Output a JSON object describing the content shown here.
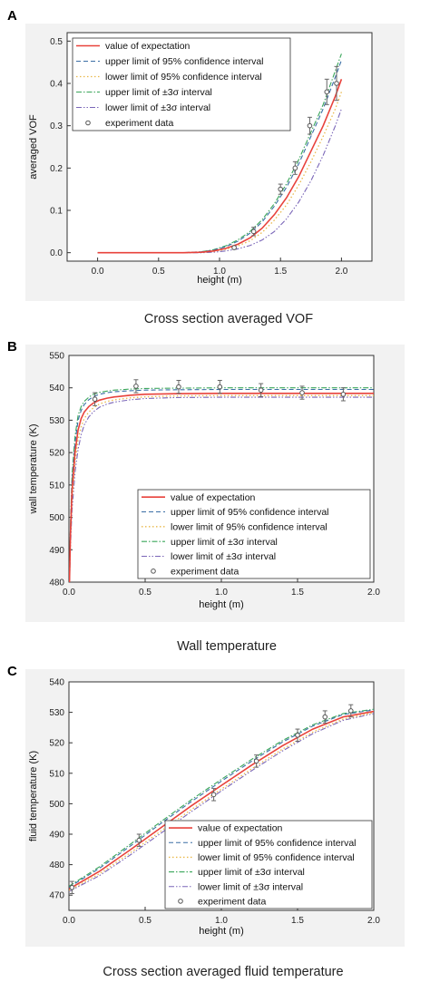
{
  "captions": [
    "Cross section averaged VOF",
    "Wall temperature",
    "Cross section averaged fluid temperature"
  ],
  "legend": {
    "entries": [
      {
        "label": "value of expectation",
        "color": "#e8423b",
        "dash": "",
        "width": 1.6
      },
      {
        "label": "upper limit of 95% confidence interval",
        "color": "#3a6ea5",
        "dash": "5,3",
        "width": 1.1
      },
      {
        "label": "lower limit of 95% confidence interval",
        "color": "#e9b84a",
        "dash": "1.5,2.5",
        "width": 1.3
      },
      {
        "label": "upper limit of ±3σ interval",
        "color": "#3aa65a",
        "dash": "6,2,1.5,2",
        "width": 1.1
      },
      {
        "label": "lower limit of ±3σ interval",
        "color": "#7a66b8",
        "dash": "6,2,1.5,2,1.5,2",
        "width": 1.1
      },
      {
        "label": "experiment data",
        "marker": "circle",
        "color": "#555555"
      }
    ]
  },
  "chart_data": [
    {
      "panel": "A",
      "type": "line",
      "xlabel": "height (m)",
      "ylabel": "averaged VOF",
      "xlim": [
        -0.25,
        2.25
      ],
      "ylim": [
        -0.02,
        0.52
      ],
      "xticks": [
        "0.0",
        "0.5",
        "1.0",
        "1.5",
        "2.0"
      ],
      "yticks": [
        "0.0",
        "0.1",
        "0.2",
        "0.3",
        "0.4",
        "0.5"
      ],
      "grid": false,
      "legend_position": "top-left",
      "series": [
        {
          "name": "value of expectation",
          "x": [
            0,
            0.7,
            0.85,
            0.95,
            1.05,
            1.15,
            1.25,
            1.35,
            1.45,
            1.55,
            1.65,
            1.75,
            1.85,
            1.95,
            2.0
          ],
          "y": [
            0,
            0,
            0.001,
            0.004,
            0.01,
            0.02,
            0.035,
            0.058,
            0.09,
            0.13,
            0.18,
            0.24,
            0.3,
            0.37,
            0.41
          ]
        },
        {
          "name": "upper limit of 95% confidence interval",
          "x": [
            0,
            0.7,
            0.85,
            0.95,
            1.05,
            1.15,
            1.25,
            1.35,
            1.45,
            1.55,
            1.65,
            1.75,
            1.85,
            1.95,
            2.0
          ],
          "y": [
            0,
            0,
            0.002,
            0.006,
            0.014,
            0.027,
            0.046,
            0.073,
            0.11,
            0.155,
            0.21,
            0.275,
            0.34,
            0.415,
            0.455
          ]
        },
        {
          "name": "lower limit of 95% confidence interval",
          "x": [
            0,
            0.7,
            0.85,
            0.95,
            1.05,
            1.15,
            1.25,
            1.35,
            1.45,
            1.55,
            1.65,
            1.75,
            1.85,
            1.95,
            2.0
          ],
          "y": [
            0,
            0,
            0.001,
            0.003,
            0.008,
            0.016,
            0.028,
            0.048,
            0.077,
            0.113,
            0.16,
            0.215,
            0.275,
            0.34,
            0.38
          ]
        },
        {
          "name": "upper limit of ±3σ interval",
          "x": [
            0,
            0.7,
            0.85,
            0.95,
            1.05,
            1.15,
            1.25,
            1.35,
            1.45,
            1.55,
            1.65,
            1.75,
            1.85,
            1.95,
            2.0
          ],
          "y": [
            0,
            0,
            0.002,
            0.007,
            0.016,
            0.03,
            0.05,
            0.078,
            0.116,
            0.163,
            0.22,
            0.285,
            0.35,
            0.43,
            0.47
          ]
        },
        {
          "name": "lower limit of ±3σ interval",
          "x": [
            0,
            0.7,
            0.85,
            0.95,
            1.05,
            1.15,
            1.25,
            1.35,
            1.45,
            1.55,
            1.65,
            1.75,
            1.85,
            1.95,
            2.0
          ],
          "y": [
            0,
            0,
            0,
            0.001,
            0.004,
            0.009,
            0.017,
            0.03,
            0.05,
            0.08,
            0.12,
            0.17,
            0.23,
            0.3,
            0.34
          ]
        }
      ],
      "experiment": {
        "x": [
          1.12,
          1.28,
          1.5,
          1.62,
          1.74,
          1.88,
          1.96
        ],
        "y": [
          0.012,
          0.05,
          0.15,
          0.2,
          0.3,
          0.38,
          0.4
        ],
        "err": [
          0.004,
          0.01,
          0.012,
          0.015,
          0.02,
          0.03,
          0.04
        ]
      }
    },
    {
      "panel": "B",
      "type": "line",
      "xlabel": "height (m)",
      "ylabel": "wall temperature (K)",
      "xlim": [
        0,
        2
      ],
      "ylim": [
        480,
        550
      ],
      "xticks": [
        "0.0",
        "0.5",
        "1.0",
        "1.5",
        "2.0"
      ],
      "yticks": [
        "480",
        "490",
        "500",
        "510",
        "520",
        "530",
        "540",
        "550"
      ],
      "grid": false,
      "legend_position": "bottom-center",
      "series": [
        {
          "name": "value of expectation",
          "x": [
            0,
            0.01,
            0.02,
            0.04,
            0.06,
            0.08,
            0.1,
            0.13,
            0.16,
            0.2,
            0.25,
            0.3,
            0.4,
            0.5,
            0.7,
            1.0,
            1.3,
            1.6,
            2.0
          ],
          "y": [
            472,
            495,
            508,
            520,
            527,
            530.5,
            532.5,
            534.2,
            535.3,
            536.2,
            536.8,
            537.2,
            537.7,
            538,
            538.2,
            538.3,
            538.3,
            538.3,
            538.3
          ]
        },
        {
          "name": "upper limit of 95% confidence interval",
          "x": [
            0,
            0.01,
            0.02,
            0.04,
            0.06,
            0.08,
            0.1,
            0.13,
            0.16,
            0.2,
            0.25,
            0.3,
            0.4,
            0.5,
            0.7,
            1.0,
            1.3,
            1.6,
            2.0
          ],
          "y": [
            472,
            497,
            511,
            523,
            530,
            533,
            534.8,
            536.3,
            537.3,
            538,
            538.5,
            538.8,
            539.1,
            539.3,
            539.4,
            539.5,
            539.5,
            539.5,
            539.5
          ]
        },
        {
          "name": "lower limit of 95% confidence interval",
          "x": [
            0,
            0.01,
            0.02,
            0.04,
            0.06,
            0.08,
            0.1,
            0.13,
            0.16,
            0.2,
            0.25,
            0.3,
            0.4,
            0.5,
            0.7,
            1.0,
            1.3,
            1.6,
            2.0
          ],
          "y": [
            472,
            493,
            505,
            517,
            524,
            528,
            530.5,
            532.5,
            533.8,
            535,
            535.8,
            536.3,
            536.9,
            537.2,
            537.5,
            537.6,
            537.6,
            537.6,
            537.6
          ]
        },
        {
          "name": "upper limit of ±3σ interval",
          "x": [
            0,
            0.01,
            0.02,
            0.04,
            0.06,
            0.08,
            0.1,
            0.13,
            0.16,
            0.2,
            0.25,
            0.3,
            0.4,
            0.5,
            0.7,
            1.0,
            1.3,
            1.6,
            2.0
          ],
          "y": [
            472,
            498,
            513,
            525,
            531.5,
            534.2,
            535.8,
            537.1,
            538,
            538.6,
            539,
            539.3,
            539.6,
            539.8,
            539.9,
            540,
            540,
            540,
            540
          ]
        },
        {
          "name": "lower limit of ±3σ interval",
          "x": [
            0,
            0.01,
            0.02,
            0.04,
            0.06,
            0.08,
            0.1,
            0.13,
            0.16,
            0.2,
            0.25,
            0.3,
            0.4,
            0.5,
            0.7,
            1.0,
            1.3,
            1.6,
            2.0
          ],
          "y": [
            472,
            491,
            502,
            514,
            521,
            525.5,
            528.5,
            531,
            532.6,
            534,
            535,
            535.6,
            536.3,
            536.7,
            537,
            537.1,
            537.1,
            537.1,
            537.1
          ]
        }
      ],
      "experiment": {
        "x": [
          0.17,
          0.44,
          0.72,
          0.99,
          1.26,
          1.53,
          1.8
        ],
        "y": [
          536.5,
          540.5,
          540.3,
          540.3,
          539.3,
          538.5,
          538
        ],
        "err": [
          2,
          2,
          2,
          2,
          2,
          2,
          2
        ]
      }
    },
    {
      "panel": "C",
      "type": "line",
      "xlabel": "height (m)",
      "ylabel": "fluid temperature (K)",
      "xlim": [
        0,
        2
      ],
      "ylim": [
        465,
        540
      ],
      "xticks": [
        "0.0",
        "0.5",
        "1.0",
        "1.5",
        "2.0"
      ],
      "yticks": [
        "470",
        "480",
        "490",
        "500",
        "510",
        "520",
        "530",
        "540"
      ],
      "grid": false,
      "legend_position": "bottom-right",
      "series": [
        {
          "name": "value of expectation",
          "x": [
            0,
            0.2,
            0.4,
            0.6,
            0.8,
            1.0,
            1.2,
            1.4,
            1.6,
            1.8,
            2.0
          ],
          "y": [
            472,
            477.8,
            484.8,
            492,
            499.2,
            506,
            512.7,
            519,
            524.5,
            528.5,
            530.3
          ]
        },
        {
          "name": "upper limit of 95% confidence interval",
          "x": [
            0,
            0.2,
            0.4,
            0.6,
            0.8,
            1.0,
            1.2,
            1.4,
            1.6,
            1.8,
            2.0
          ],
          "y": [
            472.6,
            478.8,
            486,
            493.4,
            500.6,
            507.4,
            514,
            520.2,
            525.5,
            529.3,
            530.8
          ]
        },
        {
          "name": "lower limit of 95% confidence interval",
          "x": [
            0,
            0.2,
            0.4,
            0.6,
            0.8,
            1.0,
            1.2,
            1.4,
            1.6,
            1.8,
            2.0
          ],
          "y": [
            471.5,
            477,
            483.8,
            490.9,
            498,
            504.8,
            511.5,
            517.9,
            523.5,
            527.8,
            529.9
          ]
        },
        {
          "name": "upper limit of ±3σ interval",
          "x": [
            0,
            0.2,
            0.4,
            0.6,
            0.8,
            1.0,
            1.2,
            1.4,
            1.6,
            1.8,
            2.0
          ],
          "y": [
            472.9,
            479.3,
            486.6,
            494,
            501.2,
            508,
            514.6,
            520.7,
            525.9,
            529.6,
            531
          ]
        },
        {
          "name": "lower limit of ±3σ interval",
          "x": [
            0,
            0.2,
            0.4,
            0.6,
            0.8,
            1.0,
            1.2,
            1.4,
            1.6,
            1.8,
            2.0
          ],
          "y": [
            471.2,
            476.4,
            483.1,
            490.2,
            497.3,
            504.2,
            510.9,
            517.3,
            523,
            527.4,
            529.6
          ]
        }
      ],
      "experiment": {
        "x": [
          0.02,
          0.46,
          0.95,
          1.23,
          1.5,
          1.68,
          1.85
        ],
        "y": [
          472.5,
          488,
          503,
          514,
          522.5,
          528.5,
          530.5
        ],
        "err": [
          2,
          2,
          2,
          2,
          2,
          2,
          2
        ]
      }
    }
  ]
}
